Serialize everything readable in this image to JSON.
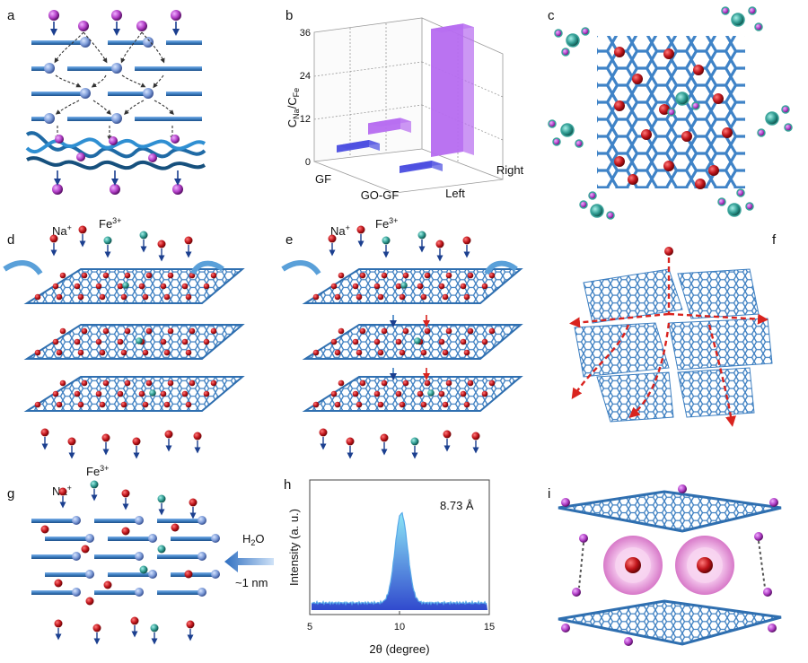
{
  "panels": {
    "a": "a",
    "b": "b",
    "c": "c",
    "d": "d",
    "e": "e",
    "f": "f",
    "g": "g",
    "h": "h",
    "i": "i"
  },
  "ions": {
    "na": "Na",
    "na_sup": "+",
    "fe": "Fe",
    "fe_sup": "3+"
  },
  "panel_g": {
    "water": "H",
    "water_sub": "2",
    "water_o": "O",
    "spacing": "~1 nm"
  },
  "colors": {
    "sheet": "#3d7fc1",
    "na_ion": "#c0151b",
    "fe_ion": "#3aa39a",
    "purple_ion": "#b23fc7",
    "arrow": "#1b3f8f",
    "dash_red": "#d9231e"
  },
  "chart_data": [
    {
      "type": "bar",
      "panel": "b",
      "ylabel": "C",
      "ylabel_sub1": "Na",
      "ylabel_mid": "/C",
      "ylabel_sub2": "Fe",
      "yticks": [
        "0",
        "12",
        "24",
        "36"
      ],
      "ylim": [
        0,
        36
      ],
      "x_categories": [
        "GF",
        "GO-GF"
      ],
      "z_categories": [
        "Left",
        "Right"
      ],
      "series": [
        {
          "name": "Left",
          "values": [
            1.5,
            1.5
          ]
        },
        {
          "name": "Right",
          "values": [
            3,
            34
          ]
        }
      ]
    },
    {
      "type": "line",
      "panel": "h",
      "xlabel": "2θ (degree)",
      "ylabel": "Intensity (a. u.)",
      "xticks": [
        "5",
        "10",
        "15"
      ],
      "xlim": [
        5,
        15
      ],
      "annotation": "8.73 Å",
      "peak_x": 10.1
    }
  ]
}
